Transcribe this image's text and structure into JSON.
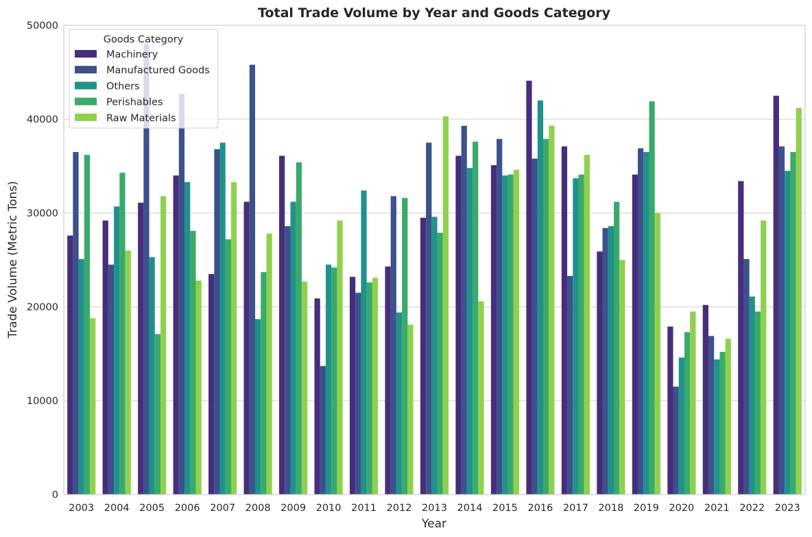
{
  "chart_data": {
    "type": "bar",
    "title": "Total Trade Volume by Year and Goods Category",
    "xlabel": "Year",
    "ylabel": "Trade Volume (Metric Tons)",
    "ylim": [
      0,
      50000
    ],
    "yticks": [
      0,
      10000,
      20000,
      30000,
      40000,
      50000
    ],
    "grid": "horizontal",
    "legend": {
      "title": "Goods Category",
      "placement": "top-left"
    },
    "categories": [
      "2003",
      "2004",
      "2005",
      "2006",
      "2007",
      "2008",
      "2009",
      "2010",
      "2011",
      "2012",
      "2013",
      "2014",
      "2015",
      "2016",
      "2017",
      "2018",
      "2019",
      "2020",
      "2021",
      "2022",
      "2023"
    ],
    "series": [
      {
        "name": "Machinery",
        "color": "#472d7b",
        "values": [
          27600,
          29200,
          31100,
          34000,
          23500,
          31200,
          36100,
          20900,
          23200,
          24300,
          29500,
          36100,
          35100,
          44100,
          37100,
          25900,
          34100,
          17900,
          20200,
          33400,
          42500
        ]
      },
      {
        "name": "Manufactured Goods",
        "color": "#3b528b",
        "values": [
          36500,
          24500,
          48000,
          42700,
          36800,
          45800,
          28600,
          13700,
          21500,
          31800,
          37500,
          39300,
          37900,
          35800,
          23300,
          28400,
          36900,
          11500,
          16900,
          25100,
          37100
        ]
      },
      {
        "name": "Others",
        "color": "#21918c",
        "values": [
          25100,
          30700,
          25300,
          33300,
          37500,
          18700,
          31200,
          24500,
          32400,
          19400,
          29600,
          34800,
          34000,
          42000,
          33700,
          28600,
          36500,
          14600,
          14400,
          21100,
          34500
        ]
      },
      {
        "name": "Perishables",
        "color": "#3aaa6b",
        "values": [
          36200,
          34300,
          17100,
          28100,
          27200,
          23700,
          35400,
          24200,
          22600,
          31600,
          27900,
          37600,
          34100,
          37900,
          34100,
          31200,
          41900,
          17300,
          15200,
          19500,
          36500
        ]
      },
      {
        "name": "Raw Materials",
        "color": "#8fd14f",
        "values": [
          18800,
          26000,
          31800,
          22800,
          33300,
          27800,
          22700,
          29200,
          23100,
          18100,
          40300,
          20600,
          34600,
          39300,
          36200,
          25000,
          30000,
          19500,
          16600,
          29200,
          41200
        ]
      }
    ]
  }
}
